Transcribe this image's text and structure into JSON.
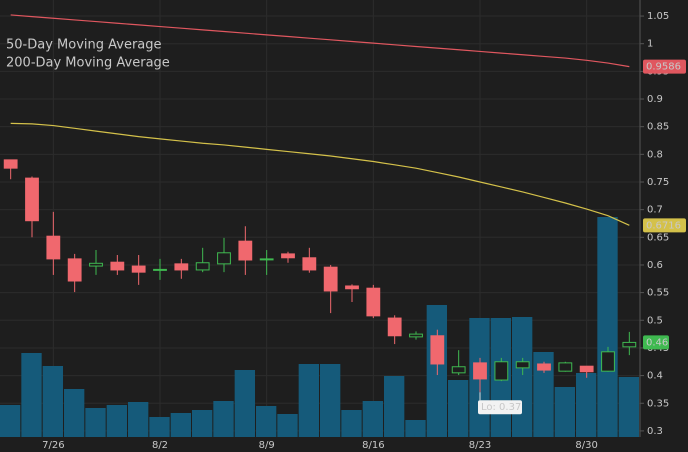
{
  "chart_data": {
    "type": "candlestick",
    "categories": [
      null,
      null,
      "7/26",
      null,
      null,
      null,
      null,
      "8/2",
      null,
      null,
      null,
      null,
      "8/9",
      null,
      null,
      null,
      null,
      "8/16",
      null,
      null,
      null,
      null,
      "8/23",
      null,
      null,
      null,
      null,
      "8/30",
      null,
      null
    ],
    "open": [
      0.79,
      0.757,
      0.652,
      0.611,
      0.598,
      0.605,
      0.598,
      0.591,
      0.602,
      0.591,
      0.602,
      0.643,
      0.61,
      0.62,
      0.613,
      0.596,
      0.562,
      0.558,
      0.504,
      0.47,
      0.472,
      0.405,
      0.423,
      0.392,
      0.414,
      0.421,
      0.408,
      0.417,
      0.408,
      0.452
    ],
    "high": [
      0.79,
      0.76,
      0.696,
      0.62,
      0.627,
      0.618,
      0.618,
      0.611,
      0.611,
      0.631,
      0.649,
      0.67,
      0.627,
      0.624,
      0.631,
      0.6,
      0.565,
      0.564,
      0.509,
      0.48,
      0.483,
      0.446,
      0.432,
      0.432,
      0.432,
      0.425,
      0.425,
      0.417,
      0.452,
      0.479
    ],
    "low": [
      0.755,
      0.65,
      0.582,
      0.551,
      0.582,
      0.582,
      0.564,
      0.573,
      0.575,
      0.587,
      0.587,
      0.582,
      0.582,
      0.604,
      0.586,
      0.513,
      0.533,
      0.504,
      0.457,
      0.465,
      0.401,
      0.401,
      0.37,
      0.39,
      0.401,
      0.405,
      0.407,
      0.396,
      0.407,
      0.437
    ],
    "close": [
      0.775,
      0.68,
      0.611,
      0.571,
      0.603,
      0.591,
      0.587,
      0.592,
      0.591,
      0.604,
      0.622,
      0.609,
      0.611,
      0.613,
      0.591,
      0.553,
      0.557,
      0.508,
      0.472,
      0.475,
      0.421,
      0.416,
      0.394,
      0.425,
      0.425,
      0.41,
      0.423,
      0.407,
      0.443,
      0.46
    ],
    "up_color": "#3fb950",
    "down_color": "#f0686e",
    "volume": {
      "color": "#155a7a",
      "values": [
        32,
        84,
        71,
        48,
        29,
        32,
        35,
        20,
        24,
        27,
        36,
        67,
        31,
        23,
        73,
        73,
        27,
        36,
        61,
        17,
        132,
        57,
        119,
        119,
        120,
        85,
        50,
        64,
        220,
        60
      ]
    },
    "vlim": [
      0,
      437
    ],
    "series": [
      {
        "name": "50-Day Moving Average",
        "color": "#d4c14a",
        "tag_text_color": "#222222",
        "values": [
          0.856,
          0.855,
          0.852,
          0.847,
          0.842,
          0.837,
          0.832,
          0.828,
          0.824,
          0.82,
          0.817,
          0.813,
          0.809,
          0.805,
          0.801,
          0.797,
          0.792,
          0.787,
          0.781,
          0.775,
          0.767,
          0.759,
          0.75,
          0.741,
          0.732,
          0.722,
          0.712,
          0.701,
          0.689,
          0.6716
        ]
      },
      {
        "name": "200-Day Moving Average",
        "color": "#e0575f",
        "tag_text_color": "#ffffff",
        "values": [
          1.052,
          1.049,
          1.046,
          1.043,
          1.04,
          1.037,
          1.034,
          1.031,
          1.028,
          1.025,
          1.022,
          1.019,
          1.016,
          1.013,
          1.01,
          1.007,
          1.004,
          1.001,
          0.998,
          0.995,
          0.992,
          0.989,
          0.986,
          0.983,
          0.98,
          0.977,
          0.974,
          0.97,
          0.965,
          0.9586
        ]
      }
    ],
    "annotation": "Lo: 0.37",
    "ylim": [
      0.289,
      1.079
    ],
    "yticks": [
      0.3,
      0.35,
      0.4,
      0.45,
      0.5,
      0.55,
      0.6,
      0.65,
      0.7,
      0.75,
      0.8,
      0.85,
      0.9,
      0.95,
      1,
      1.05
    ],
    "grid": true
  }
}
